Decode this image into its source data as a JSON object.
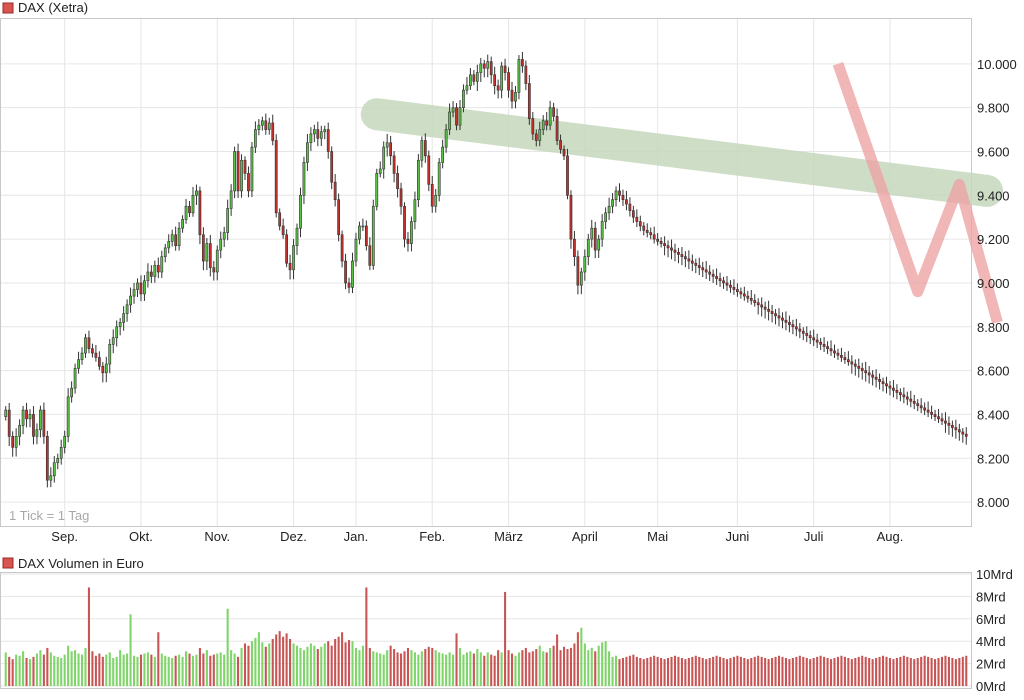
{
  "chart_data": [
    {
      "type": "candlestick",
      "title": "DAX (Xetra)",
      "note": "1 Tick = 1 Tag",
      "y_ticks": [
        8000,
        8200,
        8400,
        8600,
        8800,
        9000,
        9200,
        9400,
        9600,
        9800,
        10000
      ],
      "y_tick_labels": [
        "8.000",
        "8.200",
        "8.400",
        "8.600",
        "8.800",
        "9.000",
        "9.200",
        "9.400",
        "9.600",
        "9.800",
        "10.000"
      ],
      "ylim": [
        7900,
        10200
      ],
      "x_tick_labels": [
        "Sep.",
        "Okt.",
        "Nov.",
        "Dez.",
        "Jan.",
        "Feb.",
        "März",
        "April",
        "Mai",
        "Juni",
        "Juli",
        "Aug."
      ],
      "x_tick_index": [
        17,
        39,
        61,
        83,
        101,
        123,
        145,
        167,
        188,
        211,
        233,
        255
      ],
      "grid": true,
      "colors": {
        "up": "#58c043",
        "down": "#c0302c",
        "trend_channel": "#c6d8bd",
        "trend_zigzag": "#eea4a4"
      },
      "trend_channel": {
        "start": [
          107,
          9770
        ],
        "end": [
          283,
          9420
        ]
      },
      "trend_zigzag": [
        [
          240,
          10000
        ],
        [
          263,
          8960
        ],
        [
          275,
          9450
        ],
        [
          286,
          8820
        ]
      ],
      "closes": [
        8420,
        8300,
        8250,
        8300,
        8350,
        8420,
        8380,
        8400,
        8300,
        8330,
        8420,
        8300,
        8100,
        8120,
        8180,
        8200,
        8250,
        8300,
        8480,
        8520,
        8610,
        8650,
        8680,
        8750,
        8700,
        8680,
        8660,
        8620,
        8590,
        8630,
        8720,
        8750,
        8800,
        8820,
        8860,
        8900,
        8940,
        8970,
        9000,
        8950,
        9010,
        9050,
        9030,
        9080,
        9050,
        9120,
        9160,
        9190,
        9220,
        9170,
        9250,
        9290,
        9350,
        9320,
        9400,
        9420,
        9220,
        9100,
        9180,
        9070,
        9050,
        9150,
        9200,
        9230,
        9340,
        9420,
        9600,
        9420,
        9560,
        9500,
        9420,
        9620,
        9700,
        9720,
        9740,
        9700,
        9730,
        9650,
        9320,
        9260,
        9220,
        9090,
        9060,
        9170,
        9250,
        9400,
        9550,
        9640,
        9680,
        9700,
        9660,
        9690,
        9700,
        9600,
        9460,
        9380,
        9220,
        9100,
        9000,
        8980,
        9100,
        9200,
        9260,
        9260,
        9170,
        9080,
        9350,
        9500,
        9520,
        9620,
        9640,
        9580,
        9500,
        9430,
        9350,
        9200,
        9180,
        9280,
        9380,
        9560,
        9650,
        9580,
        9450,
        9350,
        9400,
        9550,
        9620,
        9700,
        9780,
        9800,
        9720,
        9800,
        9880,
        9900,
        9950,
        9920,
        9960,
        10000,
        9980,
        10010,
        9950,
        9900,
        9880,
        9990,
        9960,
        9880,
        9830,
        9870,
        10020,
        9990,
        9910,
        9750,
        9680,
        9650,
        9700,
        9740,
        9720,
        9800,
        9760,
        9650,
        9610,
        9580,
        9400,
        9200,
        9120,
        8990,
        9050,
        9120,
        9200,
        9250,
        9150,
        9200,
        9280,
        9320,
        9350,
        9380,
        9420,
        9400,
        9380,
        9360,
        9330,
        9300,
        9280,
        9260,
        9240,
        9230,
        9220,
        9200,
        9190,
        9180,
        9170,
        9160,
        9150,
        9140,
        9130,
        9120,
        9110,
        9100,
        9090,
        9080,
        9070,
        9060,
        9050,
        9040,
        9030,
        9020,
        9010,
        9000,
        8990,
        8980,
        8970,
        8960,
        8950,
        8940,
        8930,
        8920,
        8910,
        8900,
        8890,
        8880,
        8870,
        8860,
        8850,
        8840,
        8830,
        8820,
        8810,
        8800,
        8790,
        8780,
        8770,
        8760,
        8750,
        8740,
        8730,
        8720,
        8710,
        8700,
        8690,
        8680,
        8670,
        8660,
        8650,
        8640,
        8630,
        8620,
        8610,
        8600,
        8590,
        8580,
        8570,
        8560,
        8550,
        8540,
        8530,
        8520,
        8510,
        8500,
        8490,
        8480,
        8470,
        8460,
        8450,
        8440,
        8430,
        8420,
        8410,
        8400,
        8390,
        8380,
        8370,
        8360,
        8350,
        8340,
        8330,
        8320,
        8310,
        8300
      ]
    },
    {
      "type": "bar",
      "title": "DAX Volumen in Euro",
      "y_ticks": [
        0,
        2,
        4,
        6,
        8,
        10
      ],
      "y_tick_labels": [
        "0Mrd",
        "2Mrd",
        "4Mrd",
        "6Mrd",
        "8Mrd",
        "10Mrd"
      ],
      "ylim": [
        0,
        10
      ],
      "grid": true,
      "colors": {
        "up": "#7fd46a",
        "down": "#c85454"
      },
      "volume_mrd": [
        3.0,
        2.6,
        2.4,
        2.8,
        2.7,
        3.1,
        2.5,
        2.4,
        2.6,
        2.9,
        3.2,
        2.8,
        3.4,
        3.0,
        2.7,
        2.6,
        2.5,
        2.8,
        3.6,
        3.1,
        3.2,
        2.9,
        2.8,
        3.4,
        8.8,
        3.1,
        2.7,
        2.9,
        2.6,
        2.8,
        3.0,
        2.5,
        2.6,
        3.2,
        2.8,
        2.9,
        6.4,
        2.7,
        2.6,
        2.8,
        2.9,
        3.0,
        2.8,
        2.6,
        4.8,
        2.9,
        2.7,
        2.6,
        2.5,
        2.7,
        2.8,
        2.6,
        3.1,
        2.9,
        2.7,
        2.8,
        3.4,
        2.9,
        3.2,
        2.7,
        2.8,
        2.9,
        3.0,
        2.8,
        6.9,
        3.2,
        2.9,
        2.6,
        3.4,
        3.8,
        3.6,
        4.0,
        4.3,
        4.8,
        3.9,
        3.5,
        3.8,
        4.2,
        4.6,
        4.9,
        4.4,
        4.7,
        4.2,
        3.8,
        3.6,
        3.4,
        3.2,
        3.5,
        3.8,
        3.6,
        3.3,
        3.5,
        3.8,
        4.0,
        3.6,
        4.2,
        4.4,
        4.8,
        3.9,
        4.1,
        4.0,
        3.4,
        3.2,
        3.6,
        8.8,
        3.4,
        3.1,
        3.0,
        2.9,
        2.8,
        3.2,
        3.6,
        3.3,
        3.0,
        2.9,
        3.1,
        3.4,
        3.2,
        3.0,
        2.8,
        3.1,
        3.3,
        3.5,
        3.4,
        3.2,
        3.0,
        2.9,
        2.8,
        3.0,
        2.8,
        4.7,
        3.4,
        2.8,
        3.0,
        3.1,
        2.9,
        3.3,
        3.0,
        2.7,
        3.0,
        2.8,
        2.7,
        3.2,
        3.0,
        8.4,
        3.2,
        2.9,
        2.7,
        3.0,
        3.2,
        3.4,
        3.0,
        3.1,
        3.3,
        3.6,
        3.1,
        3.0,
        3.4,
        3.6,
        4.6,
        3.2,
        3.5,
        3.3,
        3.4,
        3.8,
        4.8,
        5.2,
        3.8,
        3.2,
        3.4,
        3.1,
        3.6,
        3.9,
        4.0,
        3.1,
        2.6,
        2.7,
        2.4,
        2.5,
        2.6,
        2.7,
        2.8,
        2.6,
        2.5,
        2.4,
        2.5,
        2.6,
        2.7,
        2.6,
        2.5,
        2.4,
        2.5,
        2.6,
        2.7,
        2.6,
        2.5,
        2.4,
        2.5,
        2.6,
        2.7,
        2.6,
        2.5,
        2.4,
        2.5,
        2.6,
        2.7,
        2.6,
        2.5,
        2.4,
        2.5,
        2.6,
        2.7,
        2.6,
        2.5,
        2.4,
        2.5,
        2.6,
        2.7,
        2.6,
        2.5,
        2.4,
        2.5,
        2.6,
        2.7,
        2.6,
        2.5,
        2.4,
        2.5,
        2.6,
        2.7,
        2.6,
        2.5,
        2.4,
        2.5,
        2.6,
        2.7,
        2.6,
        2.5,
        2.4,
        2.5,
        2.6,
        2.7,
        2.6,
        2.5,
        2.4,
        2.5,
        2.6,
        2.7,
        2.6,
        2.5,
        2.4,
        2.5,
        2.6,
        2.7,
        2.6,
        2.5,
        2.4,
        2.5,
        2.6,
        2.7,
        2.6,
        2.5,
        2.4,
        2.5,
        2.6,
        2.7,
        2.6,
        2.5,
        2.4,
        2.5,
        2.6,
        2.7,
        2.6,
        2.5,
        2.4,
        2.5,
        2.6,
        2.7,
        2.6,
        2.5,
        2.4
      ]
    }
  ]
}
